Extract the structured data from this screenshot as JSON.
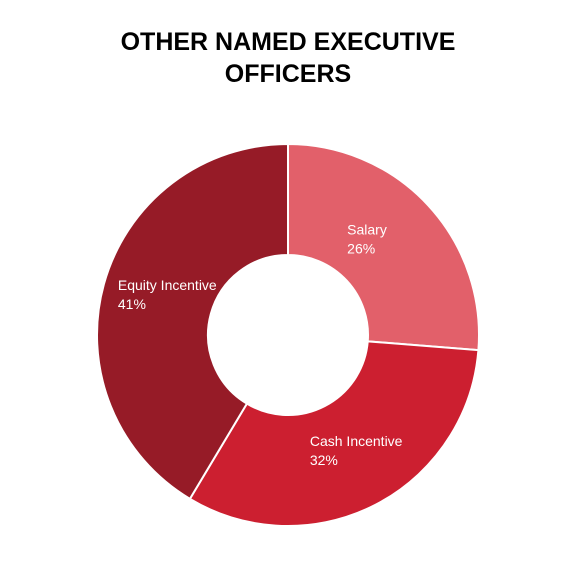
{
  "chart_data": {
    "type": "donut",
    "title": "OTHER NAMED EXECUTIVE OFFICERS",
    "categories": [
      "Salary",
      "Cash Incentive",
      "Equity Incentive"
    ],
    "values": [
      26,
      32,
      41
    ],
    "value_labels": [
      "26%",
      "32%",
      "41%"
    ],
    "colors": [
      "#e2606a",
      "#cc1f30",
      "#961b27"
    ]
  }
}
